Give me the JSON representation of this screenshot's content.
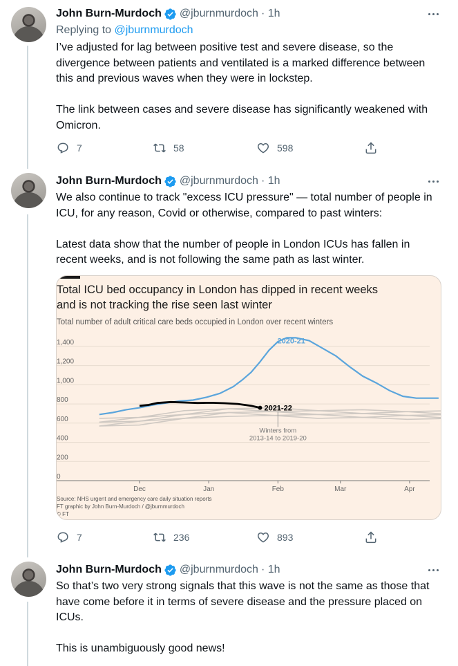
{
  "tweets": [
    {
      "author": {
        "name": "John Burn-Murdoch",
        "handle": "@jburnmurdoch",
        "time": "· 1h",
        "verified": true
      },
      "replying_prefix": "Replying to ",
      "replying_to": "@jburnmurdoch",
      "paragraphs": [
        "I’ve adjusted for lag between positive test and severe disease, so the divergence between patients and ventilated is a marked difference between this and previous waves when they were in lockstep.",
        "The link between cases and severe disease has significantly weakened with Omicron."
      ],
      "stats": {
        "replies": "7",
        "retweets": "58",
        "likes": "598"
      }
    },
    {
      "author": {
        "name": "John Burn-Murdoch",
        "handle": "@jburnmurdoch",
        "time": "· 1h",
        "verified": true
      },
      "paragraphs": [
        "We also continue to track \"excess ICU pressure\" — total number of people in ICU, for any reason, Covid or otherwise, compared to past winters:",
        "Latest data show that the number of people in London ICUs has fallen in recent weeks, and is not following the same path as last winter."
      ],
      "stats": {
        "replies": "7",
        "retweets": "236",
        "likes": "893"
      }
    },
    {
      "author": {
        "name": "John Burn-Murdoch",
        "handle": "@jburnmurdoch",
        "time": "· 1h",
        "verified": true
      },
      "paragraphs": [
        "So that’s two very strong signals that this wave is not the same as those that have come before it in terms of severe disease and the pressure placed on ICUs.",
        "This is unambiguously good news!"
      ]
    }
  ],
  "chart_data": {
    "type": "line",
    "title_lines": [
      "Total ICU bed occupancy in London has dipped in recent weeks",
      "and is not tracking the rise seen last winter"
    ],
    "subtitle": "Total number of adult critical care beds occupied in London over recent winters",
    "x_ticks": [
      "Dec",
      "Jan",
      "Feb",
      "Mar",
      "Apr"
    ],
    "y_ticks": [
      "0",
      "200",
      "400",
      "600",
      "800",
      "1,000",
      "1,200",
      "1,400"
    ],
    "ylim": [
      0,
      1500
    ],
    "series": [
      {
        "name": "2020-21",
        "color": "#5ba5dc",
        "x": [
          -18,
          -12,
          -6,
          0,
          6,
          12,
          18,
          24,
          30,
          36,
          42,
          46,
          50,
          54,
          58,
          62,
          66,
          70,
          76,
          82,
          88,
          94,
          100,
          106,
          112,
          118,
          124,
          130,
          134
        ],
        "y": [
          690,
          710,
          740,
          760,
          790,
          810,
          830,
          840,
          870,
          910,
          980,
          1050,
          1130,
          1240,
          1360,
          1450,
          1490,
          1490,
          1460,
          1380,
          1300,
          1190,
          1090,
          1020,
          940,
          880,
          860,
          860,
          860
        ]
      },
      {
        "name": "2021-22",
        "color": "#000000",
        "x": [
          0,
          4,
          8,
          14,
          20,
          26,
          32,
          38,
          44,
          50,
          54
        ],
        "y": [
          780,
          790,
          810,
          820,
          815,
          810,
          812,
          808,
          800,
          780,
          760
        ]
      },
      {
        "name": "Winters from 2013-14 to 2019-20",
        "color": "#cfc9c3",
        "x": [
          -18,
          0,
          20,
          40,
          60,
          80,
          100,
          120,
          140
        ],
        "y": [
          600,
          630,
          680,
          720,
          710,
          700,
          690,
          690,
          680
        ]
      }
    ],
    "annotation": [
      "Winters from",
      "2013-14 to 2019-20"
    ],
    "source_lines": [
      "Source: NHS urgent and emergency care daily situation reports",
      "FT graphic by John Burn-Murdoch / @jburnmurdoch",
      "© FT"
    ]
  }
}
